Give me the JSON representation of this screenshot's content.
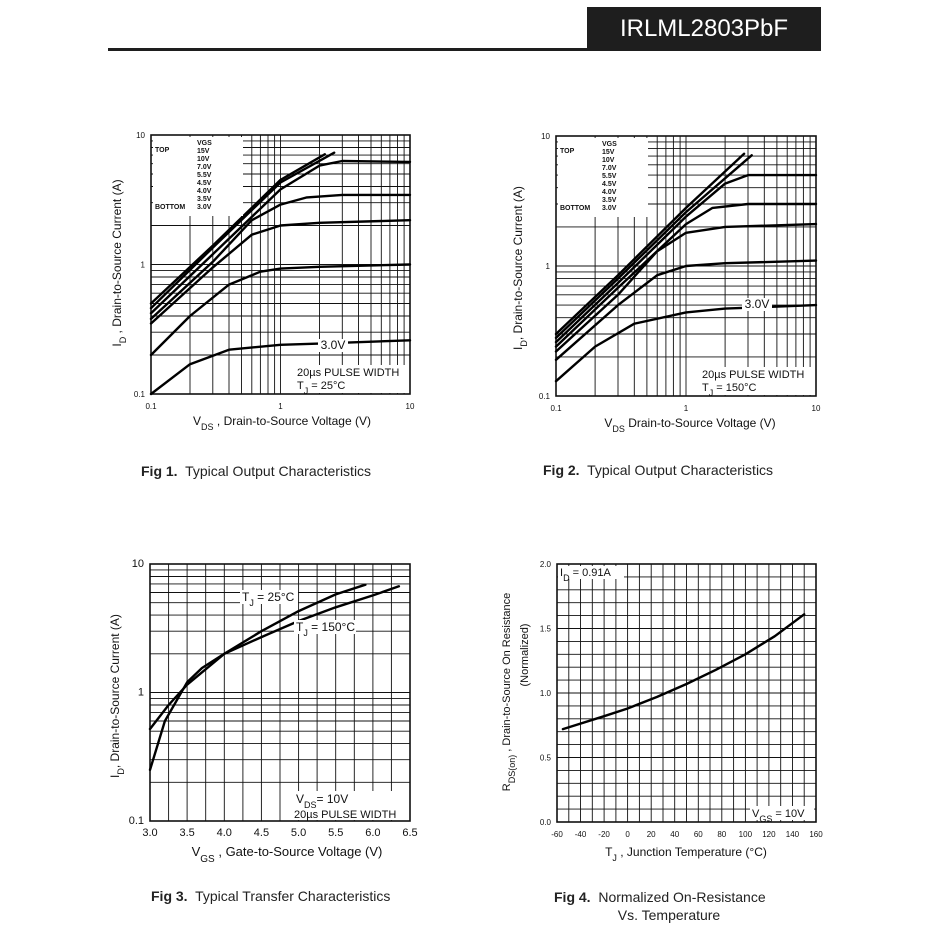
{
  "header": {
    "part_number": "IRLML2803PbF"
  },
  "captions": {
    "fig1": {
      "label": "Fig 1.",
      "text": "Typical Output Characteristics"
    },
    "fig2": {
      "label": "Fig 2.",
      "text": "Typical Output Characteristics"
    },
    "fig3": {
      "label": "Fig 3.",
      "text": "Typical Transfer Characteristics"
    },
    "fig4": {
      "label": "Fig 4.",
      "text": "Normalized On-Resistance",
      "text2": "Vs. Temperature"
    }
  },
  "chart_data": [
    {
      "id": "fig1",
      "type": "line",
      "xscale": "log",
      "yscale": "log",
      "xlim": [
        0.1,
        10
      ],
      "ylim": [
        0.1,
        10
      ],
      "xticks": [
        "0.1",
        "1",
        "10"
      ],
      "yticks": [
        "0.1",
        "1",
        "10"
      ],
      "xlabel_main": "V",
      "xlabel_sub": "DS",
      "xlabel_rest": " , Drain-to-Source Voltage (V)",
      "ylabel_main": "I",
      "ylabel_sub": "D",
      "ylabel_rest": " , Drain-to-Source Current (A)",
      "legend": {
        "heading": "VGS",
        "top": "TOP",
        "bottom": "BOTTOM",
        "entries": [
          "15V",
          "10V",
          "7.0V",
          "5.5V",
          "4.5V",
          "4.0V",
          "3.5V",
          "3.0V"
        ]
      },
      "annotations": {
        "curve_label": "3.0V",
        "note1": "20µs PULSE WIDTH",
        "note2_main": "T",
        "note2_sub": "J",
        "note2_rest": " = 25°C"
      },
      "series": [
        {
          "name": "15V",
          "x": [
            0.1,
            0.3,
            1,
            2.2
          ],
          "y": [
            0.5,
            1.4,
            4.5,
            7.1
          ]
        },
        {
          "name": "10V",
          "x": [
            0.1,
            0.3,
            1,
            2.6
          ],
          "y": [
            0.46,
            1.35,
            4.3,
            7.3
          ]
        },
        {
          "name": "7.0V",
          "x": [
            0.1,
            0.3,
            1,
            2,
            3,
            10
          ],
          "y": [
            0.42,
            1.2,
            3.8,
            5.8,
            6.3,
            6.2
          ]
        },
        {
          "name": "5.5V",
          "x": [
            0.1,
            0.3,
            0.6,
            1,
            1.6,
            3,
            10
          ],
          "y": [
            0.38,
            1.05,
            2.2,
            2.9,
            3.3,
            3.45,
            3.45
          ]
        },
        {
          "name": "4.5V",
          "x": [
            0.1,
            0.3,
            0.6,
            1,
            2,
            10
          ],
          "y": [
            0.35,
            0.95,
            1.7,
            2.0,
            2.1,
            2.2
          ]
        },
        {
          "name": "4.0V",
          "x": [
            0.1,
            0.2,
            0.4,
            0.7,
            1,
            2,
            10
          ],
          "y": [
            0.2,
            0.4,
            0.7,
            0.88,
            0.93,
            0.96,
            1.0
          ]
        },
        {
          "name": "3.0V",
          "x": [
            0.1,
            0.2,
            0.4,
            1,
            2,
            10
          ],
          "y": [
            0.1,
            0.17,
            0.22,
            0.24,
            0.245,
            0.26
          ]
        }
      ]
    },
    {
      "id": "fig2",
      "type": "line",
      "xscale": "log",
      "yscale": "log",
      "xlim": [
        0.1,
        10
      ],
      "ylim": [
        0.1,
        10
      ],
      "xticks": [
        "0.1",
        "1",
        "10"
      ],
      "yticks": [
        "0.1",
        "1",
        "10"
      ],
      "xlabel_main": "V",
      "xlabel_sub": "DS",
      "xlabel_rest": " Drain-to-Source Voltage (V)",
      "ylabel_main": "I",
      "ylabel_sub": "D",
      "ylabel_rest": ", Drain-to-Source Current (A)",
      "legend": {
        "heading": "VGS",
        "top": "TOP",
        "bottom": "BOTTOM",
        "entries": [
          "15V",
          "10V",
          "7.0V",
          "5.5V",
          "4.5V",
          "4.0V",
          "3.5V",
          "3.0V"
        ]
      },
      "annotations": {
        "curve_label": "3.0V",
        "note1": "20µs PULSE WIDTH",
        "note2_main": "T",
        "note2_sub": "J",
        "note2_rest": " = 150°C"
      },
      "series": [
        {
          "name": "15V",
          "x": [
            0.1,
            0.3,
            1,
            2.8
          ],
          "y": [
            0.3,
            0.85,
            2.8,
            7.3
          ]
        },
        {
          "name": "10V",
          "x": [
            0.1,
            0.3,
            1,
            3.2
          ],
          "y": [
            0.28,
            0.8,
            2.6,
            7.1
          ]
        },
        {
          "name": "7.0V",
          "x": [
            0.1,
            0.3,
            1,
            2,
            3,
            10
          ],
          "y": [
            0.26,
            0.74,
            2.4,
            4.3,
            5.0,
            5.0
          ]
        },
        {
          "name": "5.5V",
          "x": [
            0.1,
            0.3,
            1,
            1.6,
            3,
            10
          ],
          "y": [
            0.24,
            0.68,
            2.1,
            2.8,
            3.0,
            3.0
          ]
        },
        {
          "name": "4.5V",
          "x": [
            0.1,
            0.3,
            0.6,
            1,
            2,
            10
          ],
          "y": [
            0.22,
            0.6,
            1.3,
            1.8,
            2.0,
            2.1
          ]
        },
        {
          "name": "4.0V",
          "x": [
            0.1,
            0.3,
            0.6,
            1,
            2,
            10
          ],
          "y": [
            0.19,
            0.5,
            0.85,
            1.0,
            1.05,
            1.1
          ]
        },
        {
          "name": "3.0V",
          "x": [
            0.1,
            0.2,
            0.4,
            1,
            2,
            10
          ],
          "y": [
            0.13,
            0.24,
            0.36,
            0.44,
            0.47,
            0.5
          ]
        }
      ]
    },
    {
      "id": "fig3",
      "type": "line",
      "xscale": "linear",
      "yscale": "log",
      "xlim": [
        3.0,
        6.5
      ],
      "ylim": [
        0.1,
        10
      ],
      "xticks": [
        "3.0",
        "3.5",
        "4.0",
        "4.5",
        "5.0",
        "5.5",
        "6.0",
        "6.5"
      ],
      "yticks": [
        "0.1",
        "1",
        "10"
      ],
      "xlabel_main": "V",
      "xlabel_sub": "GS",
      "xlabel_rest": " , Gate-to-Source Voltage (V)",
      "ylabel_main": "I",
      "ylabel_sub": "D",
      "ylabel_rest": ", Drain-to-Source Current (A)",
      "annotations": {
        "t25_main": "T",
        "t25_sub": "J",
        "t25_rest": " = 25°C",
        "t150_main": "T",
        "t150_sub": "J",
        "t150_rest": " = 150°C",
        "vds_main": "V",
        "vds_sub": "DS",
        "vds_rest": "= 10V",
        "pulse": "20µs PULSE WIDTH"
      },
      "series": [
        {
          "name": "TJ = 25°C",
          "x": [
            3.0,
            3.2,
            3.5,
            3.7,
            4.0,
            4.5,
            5.0,
            5.5,
            5.9
          ],
          "y": [
            0.25,
            0.6,
            1.2,
            1.55,
            2.0,
            3.0,
            4.3,
            5.8,
            6.9
          ]
        },
        {
          "name": "TJ = 150°C",
          "x": [
            3.0,
            3.25,
            3.5,
            4.0,
            4.5,
            5.0,
            5.5,
            6.0,
            6.35
          ],
          "y": [
            0.52,
            0.8,
            1.15,
            2.0,
            2.7,
            3.6,
            4.6,
            5.7,
            6.7
          ]
        }
      ]
    },
    {
      "id": "fig4",
      "type": "line",
      "xscale": "linear",
      "yscale": "linear",
      "xlim": [
        -60,
        160
      ],
      "ylim": [
        0.0,
        2.0
      ],
      "xticks": [
        "-60",
        "-40",
        "-20",
        "0",
        "20",
        "40",
        "60",
        "80",
        "100",
        "120",
        "140",
        "160"
      ],
      "yticks": [
        "0.0",
        "0.5",
        "1.0",
        "1.5",
        "2.0"
      ],
      "xlabel_main": "T",
      "xlabel_sub": "J",
      "xlabel_rest": " , Junction Temperature (°C)",
      "ylabel_main": "R",
      "ylabel_sub": "DS(on)",
      "ylabel_rest": " ,  Drain-to-Source On Resistance",
      "ylabel2": "(Normalized)",
      "annotations": {
        "id_main": "I",
        "id_sub": "D",
        "id_rest": " = 0.91A",
        "vgs_main": "V",
        "vgs_sub": "GS",
        "vgs_rest": " = 10V"
      },
      "series": [
        {
          "name": "RDS(on)",
          "x": [
            -55,
            -20,
            0,
            25,
            50,
            75,
            100,
            125,
            150
          ],
          "y": [
            0.72,
            0.82,
            0.88,
            0.97,
            1.07,
            1.18,
            1.3,
            1.44,
            1.61
          ]
        }
      ]
    }
  ]
}
